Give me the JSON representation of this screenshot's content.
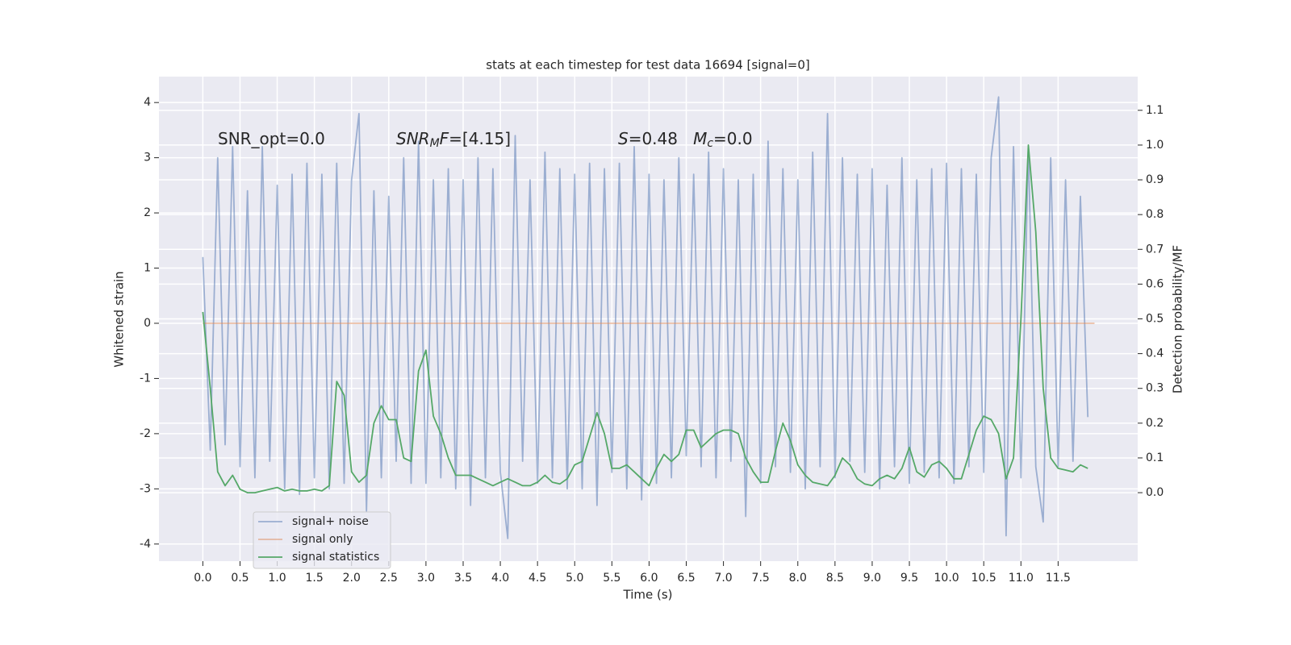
{
  "chart_data": {
    "type": "line",
    "title": "stats at each timestep for test data 16694 [signal=0]",
    "xlabel": "Time (s)",
    "ylabel": "Whitened strain",
    "y2label": "Detection probability/MF",
    "annotations": [
      {
        "parts": [
          {
            "text": "SNR_opt=0.0"
          }
        ]
      },
      {
        "parts": [
          {
            "text": "SNR",
            "style": "math"
          },
          {
            "text": "M",
            "style": "math-sub"
          },
          {
            "text": "F",
            "style": "math"
          },
          {
            "text": "=[4.15]"
          }
        ]
      },
      {
        "parts": [
          {
            "text": "S",
            "style": "math"
          },
          {
            "text": "=0.48   "
          },
          {
            "text": "M",
            "style": "math"
          },
          {
            "text": "c",
            "style": "math-sub"
          },
          {
            "text": "=0.0"
          }
        ]
      }
    ],
    "x": [
      0.0,
      0.1,
      0.2,
      0.3,
      0.4,
      0.5,
      0.6,
      0.7,
      0.8,
      0.9,
      1.0,
      1.1,
      1.2,
      1.3,
      1.4,
      1.5,
      1.6,
      1.7,
      1.8,
      1.9,
      2.0,
      2.1,
      2.2,
      2.3,
      2.4,
      2.5,
      2.6,
      2.7,
      2.8,
      2.9,
      3.0,
      3.1,
      3.2,
      3.3,
      3.4,
      3.5,
      3.6,
      3.7,
      3.8,
      3.9,
      4.0,
      4.1,
      4.2,
      4.3,
      4.4,
      4.5,
      4.6,
      4.7,
      4.8,
      4.9,
      5.0,
      5.1,
      5.2,
      5.3,
      5.4,
      5.5,
      5.6,
      5.7,
      5.8,
      5.9,
      6.0,
      6.1,
      6.2,
      6.3,
      6.4,
      6.5,
      6.6,
      6.7,
      6.8,
      6.9,
      7.0,
      7.1,
      7.2,
      7.3,
      7.4,
      7.5,
      7.6,
      7.7,
      7.8,
      7.9,
      8.0,
      8.1,
      8.2,
      8.3,
      8.4,
      8.5,
      8.6,
      8.7,
      8.8,
      8.9,
      9.0,
      9.1,
      9.2,
      9.3,
      9.4,
      9.5,
      9.6,
      9.7,
      9.8,
      9.9,
      10.0,
      10.1,
      10.2,
      10.3,
      10.4,
      10.5,
      10.6,
      10.7,
      10.8,
      10.9,
      11.0,
      11.1,
      11.2,
      11.3,
      11.4,
      11.5,
      11.6,
      11.7,
      11.8,
      11.9
    ],
    "series": [
      {
        "name": "signal+ noise",
        "color": "#4c72b0",
        "opacity": 0.5,
        "values": [
          1.2,
          -2.3,
          3.0,
          -2.2,
          3.2,
          -2.6,
          2.4,
          -2.8,
          3.2,
          -2.5,
          2.5,
          -3.0,
          2.7,
          -3.1,
          2.9,
          -2.8,
          2.7,
          -3.0,
          2.9,
          -2.9,
          2.6,
          3.8,
          -3.4,
          2.4,
          -2.8,
          2.3,
          -2.5,
          3.0,
          -2.9,
          3.3,
          -2.9,
          2.6,
          -2.8,
          2.8,
          -3.0,
          2.6,
          -3.3,
          3.0,
          -2.8,
          2.8,
          -2.7,
          -3.9,
          3.4,
          -2.5,
          2.6,
          -2.9,
          3.1,
          -2.8,
          2.8,
          -3.0,
          2.7,
          -3.0,
          2.9,
          -3.3,
          2.8,
          -2.7,
          2.9,
          -3.0,
          3.2,
          -3.2,
          2.7,
          -2.9,
          2.6,
          -2.8,
          3.0,
          -2.4,
          2.7,
          -2.6,
          3.1,
          -2.8,
          2.8,
          -2.5,
          2.6,
          -3.5,
          2.7,
          -2.9,
          3.3,
          -2.6,
          2.8,
          -2.7,
          2.6,
          -3.0,
          3.1,
          -2.6,
          3.8,
          -2.8,
          3.0,
          -2.5,
          2.7,
          -2.7,
          2.8,
          -3.0,
          2.5,
          -2.6,
          3.0,
          -2.9,
          2.6,
          -2.7,
          2.8,
          -2.8,
          2.9,
          -2.9,
          2.8,
          -2.6,
          2.7,
          -2.7,
          3.0,
          4.1,
          -3.85,
          3.2,
          -2.8,
          3.2,
          -2.6,
          -3.6,
          3.0,
          -2.6,
          2.6,
          -2.5,
          2.3,
          -1.7
        ]
      },
      {
        "name": "signal only",
        "color": "#dd8452",
        "opacity": 0.5,
        "x": [
          0,
          11.99
        ],
        "values": [
          0,
          0
        ]
      },
      {
        "name": "signal statistics",
        "color": "#55a868",
        "opacity": 1,
        "axis": "y2",
        "values": [
          0.52,
          0.3,
          0.06,
          0.02,
          0.05,
          0.01,
          0.0,
          0.0,
          0.005,
          0.01,
          0.015,
          0.005,
          0.01,
          0.005,
          0.005,
          0.01,
          0.005,
          0.02,
          0.32,
          0.28,
          0.06,
          0.03,
          0.05,
          0.2,
          0.25,
          0.21,
          0.21,
          0.1,
          0.09,
          0.35,
          0.41,
          0.22,
          0.17,
          0.1,
          0.05,
          0.05,
          0.05,
          0.04,
          0.03,
          0.02,
          0.03,
          0.04,
          0.03,
          0.02,
          0.02,
          0.03,
          0.05,
          0.03,
          0.025,
          0.04,
          0.08,
          0.09,
          0.16,
          0.23,
          0.17,
          0.07,
          0.07,
          0.08,
          0.06,
          0.04,
          0.02,
          0.07,
          0.11,
          0.09,
          0.11,
          0.18,
          0.18,
          0.13,
          0.15,
          0.17,
          0.18,
          0.18,
          0.17,
          0.1,
          0.06,
          0.03,
          0.03,
          0.12,
          0.2,
          0.15,
          0.08,
          0.05,
          0.03,
          0.025,
          0.02,
          0.05,
          0.1,
          0.08,
          0.04,
          0.025,
          0.02,
          0.04,
          0.05,
          0.04,
          0.07,
          0.13,
          0.06,
          0.045,
          0.08,
          0.09,
          0.07,
          0.04,
          0.04,
          0.11,
          0.18,
          0.22,
          0.21,
          0.17,
          0.04,
          0.1,
          0.5,
          1.0,
          0.75,
          0.3,
          0.1,
          0.07,
          0.065,
          0.06,
          0.08,
          0.07
        ]
      }
    ],
    "xlim": [
      -0.59,
      12.57
    ],
    "xticks": [
      {
        "value": 0,
        "label": "0.0"
      },
      0.5,
      {
        "value": 1,
        "label": "1.0"
      },
      1.5,
      {
        "value": 2,
        "label": "2.0"
      },
      2.5,
      {
        "value": 3,
        "label": "3.0"
      },
      3.5,
      {
        "value": 4,
        "label": "4.0"
      },
      4.5,
      {
        "value": 5,
        "label": "5.0"
      },
      5.5,
      {
        "value": 6,
        "label": "6.0"
      },
      6.5,
      {
        "value": 7,
        "label": "7.0"
      },
      7.5,
      {
        "value": 8,
        "label": "8.0"
      },
      8.5,
      {
        "value": 9,
        "label": "9.0"
      },
      9.5,
      {
        "value": 10,
        "label": "10.0"
      },
      10.5,
      {
        "value": 11,
        "label": "11.0"
      },
      11.5
    ],
    "ylim": [
      -4.31,
      4.47
    ],
    "yticks": [
      -4,
      -3,
      -2,
      -1,
      0,
      1,
      2,
      3,
      4
    ],
    "y2lim": [
      -0.197,
      1.197
    ],
    "y2ticks": [
      {
        "value": 0,
        "label": "0.0"
      },
      0.1,
      0.2,
      0.3,
      0.4,
      0.5,
      0.6,
      0.7,
      0.8,
      0.9,
      {
        "value": 1,
        "label": "1.0"
      },
      1.1
    ],
    "grid": true,
    "legend": "lower left"
  }
}
